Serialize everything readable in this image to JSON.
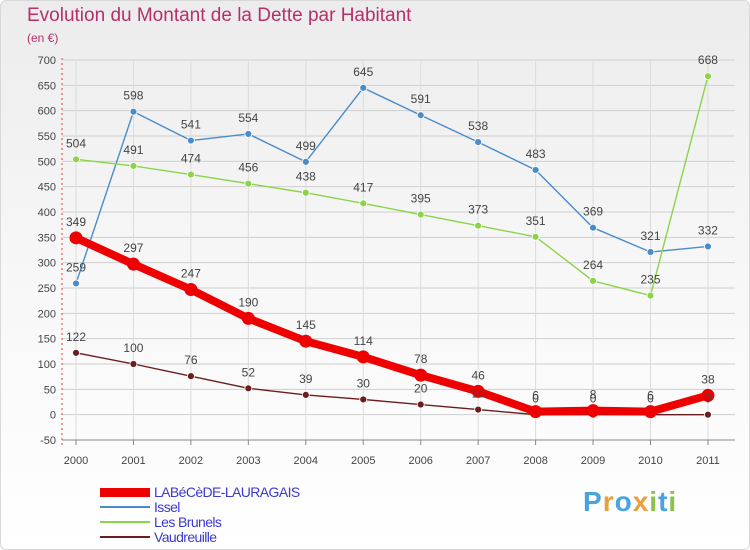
{
  "title": "Evolution du Montant de la Dette par Habitant",
  "subtitle": "(en €)",
  "logo": {
    "letters": [
      "P",
      "r",
      "o",
      "x",
      "i",
      "t",
      "i"
    ],
    "colors": [
      "#4aa3df",
      "#e6a23c",
      "#4aa3df",
      "#e6a23c",
      "#8bc34a",
      "#4aa3df",
      "#8bc34a"
    ]
  },
  "chart_data": {
    "type": "line",
    "title": "Evolution du Montant de la Dette par Habitant",
    "subtitle": "(en €)",
    "xlabel": "",
    "ylabel": "",
    "x": [
      "2000",
      "2001",
      "2002",
      "2003",
      "2004",
      "2005",
      "2006",
      "2007",
      "2008",
      "2009",
      "2010",
      "2011"
    ],
    "ylim": [
      -50,
      700
    ],
    "yticks": [
      -50,
      0,
      50,
      100,
      150,
      200,
      250,
      300,
      350,
      400,
      450,
      500,
      550,
      600,
      650,
      700
    ],
    "grid": true,
    "legend": "bottom-left",
    "series": [
      {
        "name": "LABéCèDE-LAURAGAIS",
        "color": "#ee0000",
        "values": [
          349,
          297,
          247,
          190,
          145,
          114,
          78,
          46,
          6,
          8,
          6,
          38
        ]
      },
      {
        "name": "Issel",
        "color": "#4a8cc9",
        "values": [
          259,
          598,
          541,
          554,
          499,
          645,
          591,
          538,
          483,
          369,
          321,
          332
        ]
      },
      {
        "name": "Les Brunels",
        "color": "#8bd44a",
        "values": [
          504,
          491,
          474,
          456,
          438,
          417,
          395,
          373,
          351,
          264,
          235,
          668
        ]
      },
      {
        "name": "Vaudreuille",
        "color": "#6b1d1d",
        "values": [
          122,
          100,
          76,
          52,
          39,
          30,
          20,
          10,
          0,
          0,
          0,
          0
        ]
      }
    ]
  }
}
